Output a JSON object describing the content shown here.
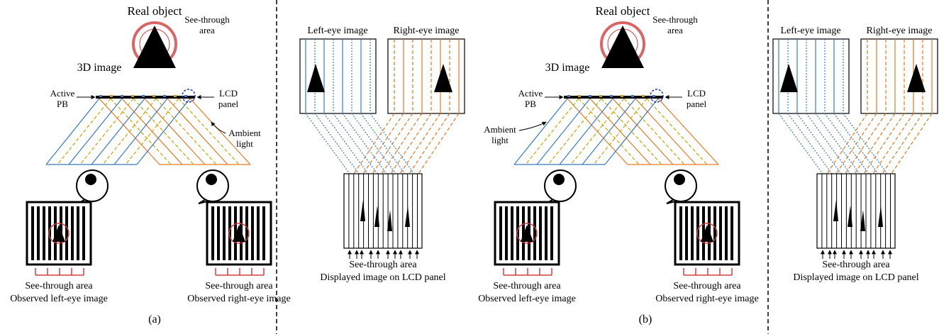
{
  "panels": [
    {
      "label": "(a)",
      "scene": {
        "real_object": "Real object",
        "image_3d": "3D image",
        "see_through_area": "See-through area",
        "active_pb": "Active PB",
        "lcd_panel": "LCD panel",
        "ambient_light": "Ambient light",
        "left_caption_top": "See-through area",
        "left_caption": "Observed left-eye image",
        "right_caption_top": "See-through area",
        "right_caption": "Observed right-eye image"
      },
      "display": {
        "left_eye": "Left-eye image",
        "right_eye": "Right-eye image",
        "see_through": "See-through area",
        "caption": "Displayed image on LCD panel"
      }
    },
    {
      "label": "(b)",
      "scene": {
        "real_object": "Real object",
        "image_3d": "3D image",
        "see_through_area": "See-through area",
        "active_pb": "Active PB",
        "lcd_panel": "LCD panel",
        "ambient_light": "Ambient light",
        "left_caption_top": "See-through area",
        "left_caption": "Observed left-eye image",
        "right_caption_top": "See-through area",
        "right_caption": "Observed right-eye image"
      },
      "display": {
        "left_eye": "Left-eye image",
        "right_eye": "Right-eye image",
        "see_through": "See-through area",
        "caption": "Displayed image on LCD panel"
      }
    }
  ]
}
